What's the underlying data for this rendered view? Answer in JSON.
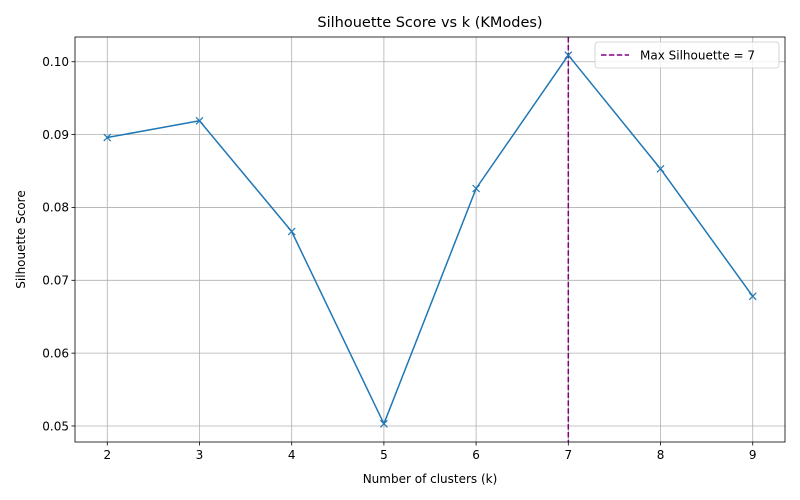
{
  "chart_data": {
    "type": "line",
    "title": "Silhouette Score vs k (KModes)",
    "xlabel": "Number of clusters (k)",
    "ylabel": "Silhouette Score",
    "x": [
      2,
      3,
      4,
      5,
      6,
      7,
      8,
      9
    ],
    "series": [
      {
        "values": [
          0.0896,
          0.0919,
          0.0767,
          0.0503,
          0.0826,
          0.1009,
          0.0853,
          0.0678
        ],
        "color": "#1f77b4",
        "marker": "x"
      }
    ],
    "xlim": [
      1.65,
      9.35
    ],
    "ylim": [
      0.0478,
      0.1034
    ],
    "xticks": [
      "2",
      "3",
      "4",
      "5",
      "6",
      "7",
      "8",
      "9"
    ],
    "yticks": [
      "0.05",
      "0.06",
      "0.07",
      "0.08",
      "0.09",
      "0.10"
    ],
    "reference_line": {
      "orientation": "vertical",
      "x": 7,
      "style": "dashed",
      "color": "#800080",
      "label": "Max Silhouette = 7"
    },
    "grid": true,
    "legend": {
      "placement": "top-right",
      "entries": [
        "Max Silhouette = 7"
      ]
    }
  }
}
